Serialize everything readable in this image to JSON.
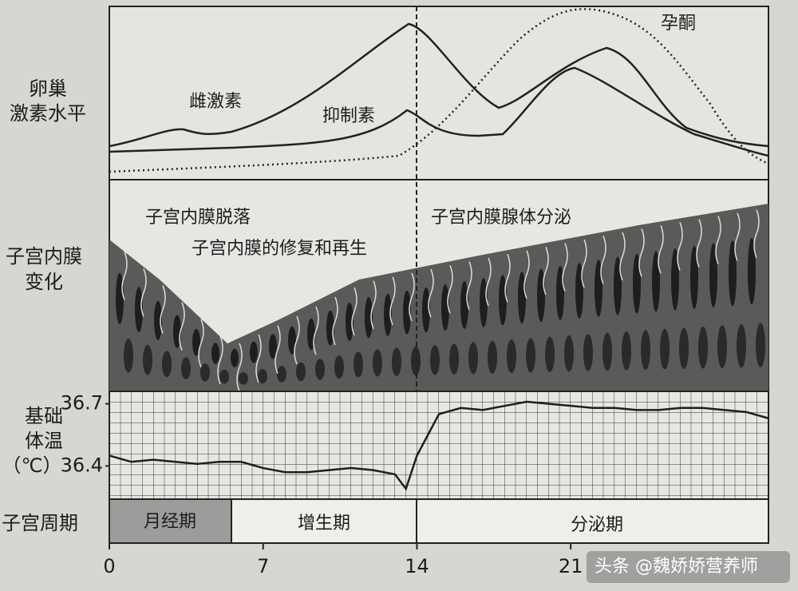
{
  "ovarian_hormone_label": [
    "卵巢",
    "激素水平"
  ],
  "hormones": {
    "estrogen": "雌激素",
    "inhibin": "抑制素",
    "progesterone": "孕酮"
  },
  "endometrium": {
    "label": [
      "子宫内膜",
      "变化"
    ],
    "shedding": "子宫内膜脱落",
    "repair": "子宫内膜的修复和再生",
    "secretion": "子宫内膜腺体分泌"
  },
  "cycle": {
    "label": "子宫周期",
    "phases": [
      "月经期",
      "增生期",
      "分泌期"
    ]
  },
  "watermark": "头条 @魏娇娇营养师",
  "chart_data": {
    "type": "line",
    "y_label": [
      "基础",
      "体温",
      "（℃）"
    ],
    "x": [
      0,
      1,
      2,
      3,
      4,
      5,
      6,
      7,
      8,
      9,
      10,
      11,
      12,
      13,
      13.5,
      14,
      15,
      16,
      17,
      18,
      19,
      20,
      21,
      22,
      23,
      24,
      25,
      26,
      27,
      28,
      29,
      30
    ],
    "values": [
      36.45,
      36.42,
      36.43,
      36.42,
      36.41,
      36.42,
      36.42,
      36.39,
      36.37,
      36.37,
      36.38,
      36.39,
      36.38,
      36.36,
      36.29,
      36.45,
      36.65,
      36.68,
      36.67,
      36.69,
      36.71,
      36.7,
      36.69,
      36.68,
      36.68,
      36.67,
      36.67,
      36.68,
      36.68,
      36.67,
      36.66,
      36.63
    ],
    "xlim": [
      0,
      30
    ],
    "xticks": [
      0,
      7,
      14,
      21
    ],
    "ylim": [
      36.24,
      36.76
    ],
    "yticks": [
      36.7,
      36.4
    ],
    "color": "#1e1e1e"
  }
}
